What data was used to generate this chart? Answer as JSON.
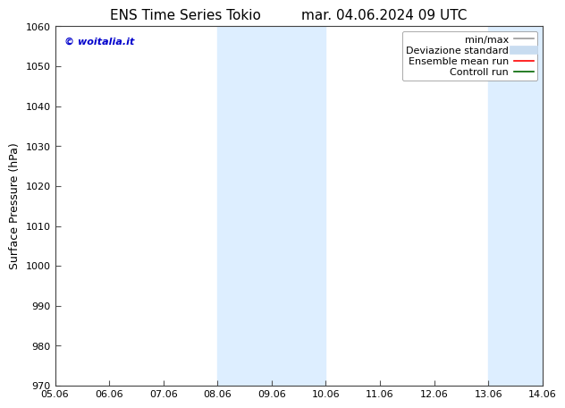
{
  "title_left": "ENS Time Series Tokio",
  "title_right": "mar. 04.06.2024 09 UTC",
  "ylabel": "Surface Pressure (hPa)",
  "ylim": [
    970,
    1060
  ],
  "yticks": [
    970,
    980,
    990,
    1000,
    1010,
    1020,
    1030,
    1040,
    1050,
    1060
  ],
  "xtick_labels": [
    "05.06",
    "06.06",
    "07.06",
    "08.06",
    "09.06",
    "10.06",
    "11.06",
    "12.06",
    "13.06",
    "14.06"
  ],
  "xtick_positions": [
    0,
    1,
    2,
    3,
    4,
    5,
    6,
    7,
    8,
    9
  ],
  "shaded_bands": [
    {
      "x_start": 3,
      "x_end": 4,
      "color": "#ddeeff"
    },
    {
      "x_start": 4,
      "x_end": 5,
      "color": "#ddeeff"
    },
    {
      "x_start": 8,
      "x_end": 9,
      "color": "#ddeeff"
    }
  ],
  "shade_color": "#ddeeff",
  "watermark_text": "© woitalia.it",
  "watermark_color": "#0000cc",
  "legend_entries": [
    {
      "label": "min/max",
      "color": "#999999",
      "lw": 1.2
    },
    {
      "label": "Deviazione standard",
      "color": "#c8dcf0",
      "lw": 7
    },
    {
      "label": "Ensemble mean run",
      "color": "#ff0000",
      "lw": 1.2
    },
    {
      "label": "Controll run",
      "color": "#006600",
      "lw": 1.2
    }
  ],
  "bg_color": "#ffffff",
  "plot_bg_color": "#ffffff",
  "title_fontsize": 11,
  "ylabel_fontsize": 9,
  "tick_fontsize": 8,
  "legend_fontsize": 8,
  "watermark_fontsize": 8
}
